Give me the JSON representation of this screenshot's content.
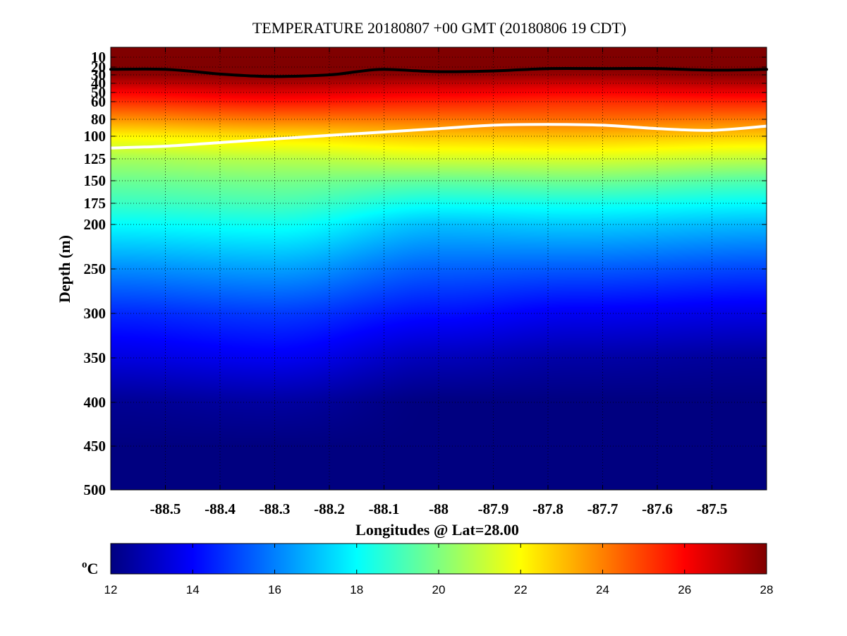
{
  "chart_data": {
    "type": "heatmap",
    "title": "TEMPERATURE 20180807 +00 GMT (20180806 19 CDT)",
    "xlabel": "Longitudes @ Lat=28.00",
    "ylabel": "Depth (m)",
    "x_ticks": [
      -88.5,
      -88.4,
      -88.3,
      -88.2,
      -88.1,
      -88,
      -87.9,
      -87.8,
      -87.7,
      -87.6,
      -87.5
    ],
    "x_tick_labels": [
      "-88.5",
      "-88.4",
      "-88.3",
      "-88.2",
      "-88.1",
      "-88",
      "-87.9",
      "-87.8",
      "-87.7",
      "-87.6",
      "-87.5"
    ],
    "xlim": [
      -88.6,
      -87.4
    ],
    "y_ticks": [
      10,
      20,
      30,
      40,
      50,
      60,
      80,
      100,
      125,
      150,
      175,
      200,
      250,
      300,
      350,
      400,
      450,
      500
    ],
    "y_tick_labels": [
      "10",
      "20",
      "30",
      "40",
      "50",
      "60",
      "80",
      "100",
      "125",
      "150",
      "175",
      "200",
      "250",
      "300",
      "350",
      "400",
      "450",
      "500"
    ],
    "ylim": [
      0,
      500
    ],
    "y_direction": "down",
    "grid": true,
    "colorbar": {
      "label_prefix": "o",
      "label_unit": "C",
      "range": [
        12,
        28
      ],
      "ticks": [
        12,
        14,
        16,
        18,
        20,
        22,
        24,
        26,
        28
      ],
      "tick_labels": [
        "12",
        "14",
        "16",
        "18",
        "20",
        "22",
        "24",
        "26",
        "28"
      ],
      "colormap": "jet"
    },
    "contours": [
      {
        "color": "#000000",
        "x": [
          -88.6,
          -88.5,
          -88.4,
          -88.35,
          -88.3,
          -88.2,
          -88.15,
          -88.1,
          -88.0,
          -87.9,
          -87.8,
          -87.7,
          -87.6,
          -87.5,
          -87.4
        ],
        "y": [
          23,
          23,
          29,
          31,
          32,
          30,
          26,
          23,
          26,
          25,
          22,
          22,
          22,
          24,
          23
        ]
      },
      {
        "color": "#ffffff",
        "x": [
          -88.6,
          -88.5,
          -88.4,
          -88.3,
          -88.2,
          -88.1,
          -88.0,
          -87.9,
          -87.8,
          -87.7,
          -87.6,
          -87.5,
          -87.4
        ],
        "y": [
          113,
          111,
          107,
          103,
          99,
          95,
          91,
          87,
          86,
          87,
          91,
          93,
          88
        ]
      }
    ],
    "temperature_profiles": {
      "x": [
        -88.6,
        -88.3,
        -88.0,
        -87.75,
        -87.4
      ],
      "depths": [
        0,
        10,
        20,
        30,
        40,
        50,
        60,
        80,
        100,
        125,
        150,
        175,
        200,
        250,
        300,
        350,
        400,
        450,
        500
      ],
      "values": [
        [
          28,
          28,
          28,
          27.8,
          27.0,
          26.0,
          25.3,
          23.7,
          22.1,
          20.6,
          19.7,
          18.9,
          18.0,
          16.2,
          14.6,
          13.5,
          12.3,
          12.0,
          12.0
        ],
        [
          28,
          28,
          28,
          27.9,
          27.3,
          26.5,
          25.7,
          24.1,
          22.5,
          20.9,
          19.9,
          19.1,
          18.2,
          16.5,
          14.9,
          13.8,
          12.5,
          12.0,
          12.0
        ],
        [
          28,
          28,
          28,
          27.8,
          27.0,
          26.2,
          25.5,
          24.2,
          22.9,
          21.3,
          19.6,
          18.2,
          17.0,
          15.5,
          14.2,
          12.9,
          12.0,
          12.0,
          12.0
        ],
        [
          28,
          28,
          28,
          27.6,
          26.8,
          26.0,
          25.3,
          24.3,
          23.0,
          21.4,
          19.8,
          18.3,
          17.2,
          15.4,
          13.8,
          12.6,
          12.0,
          12.0,
          12.0
        ],
        [
          28,
          28,
          28,
          27.9,
          27.2,
          26.3,
          25.5,
          24.1,
          22.8,
          21.0,
          19.3,
          18.0,
          16.9,
          15.1,
          13.6,
          12.4,
          12.0,
          12.0,
          12.0
        ]
      ]
    }
  }
}
